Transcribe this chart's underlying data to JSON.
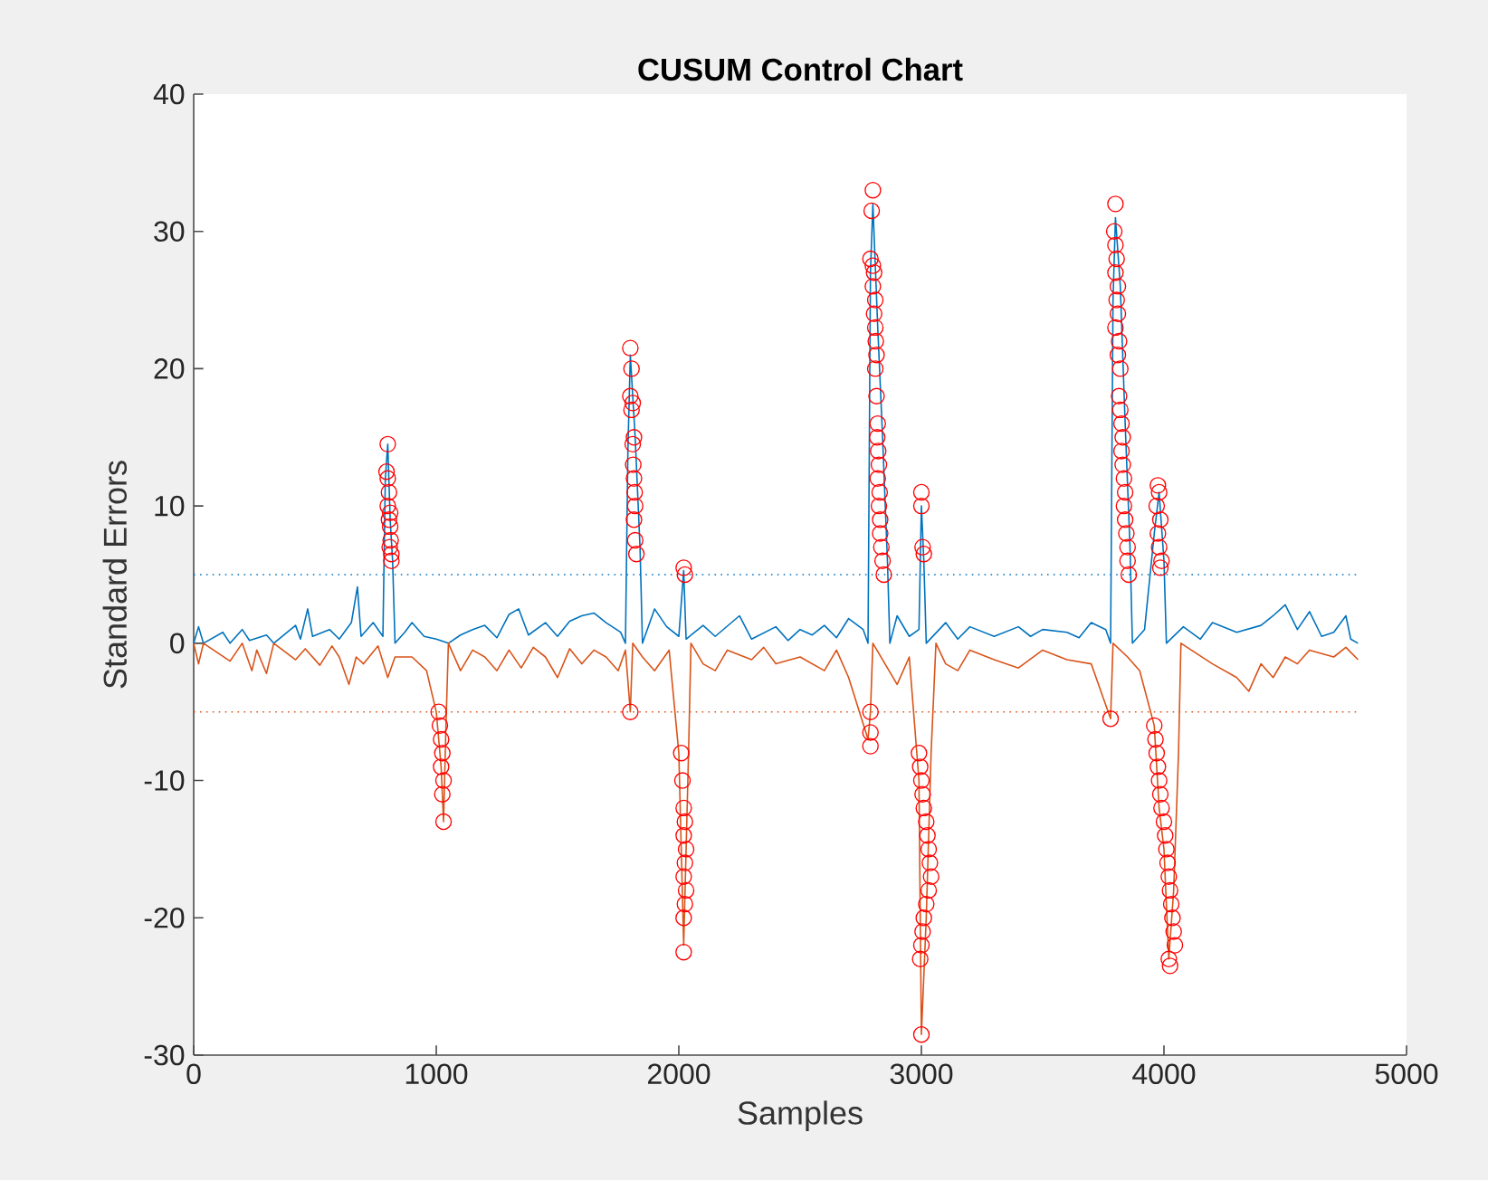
{
  "chart_data": {
    "type": "line",
    "title": "CUSUM Control Chart",
    "xlabel": "Samples",
    "ylabel": "Standard Errors",
    "xlim": [
      0,
      5000
    ],
    "ylim": [
      -30,
      40
    ],
    "xticks": [
      0,
      1000,
      2000,
      3000,
      4000,
      5000
    ],
    "yticks": [
      -30,
      -20,
      -10,
      0,
      10,
      20,
      30,
      40
    ],
    "series": [
      {
        "marker": "none",
        "color": "#0072bd",
        "x": [
          0,
          20,
          40,
          120,
          150,
          200,
          230,
          300,
          330,
          420,
          440,
          470,
          490,
          560,
          600,
          650,
          675,
          690,
          740,
          780,
          790,
          800,
          810,
          820,
          830,
          870,
          900,
          950,
          1000,
          1050,
          1100,
          1150,
          1200,
          1250,
          1300,
          1340,
          1380,
          1450,
          1500,
          1550,
          1600,
          1650,
          1700,
          1760,
          1780,
          1790,
          1800,
          1820,
          1840,
          1850,
          1900,
          1950,
          2000,
          2020,
          2030,
          2100,
          2150,
          2250,
          2300,
          2400,
          2450,
          2500,
          2550,
          2600,
          2650,
          2700,
          2760,
          2780,
          2790,
          2800,
          2820,
          2840,
          2860,
          2870,
          2900,
          2950,
          2990,
          3000,
          3010,
          3020,
          3100,
          3150,
          3200,
          3300,
          3400,
          3450,
          3500,
          3600,
          3650,
          3700,
          3760,
          3780,
          3790,
          3800,
          3820,
          3840,
          3860,
          3870,
          3920,
          3960,
          3980,
          4000,
          4010,
          4080,
          4150,
          4200,
          4300,
          4400,
          4450,
          4500,
          4550,
          4600,
          4650,
          4700,
          4750,
          4770,
          4800
        ],
        "values": [
          0,
          1.2,
          0,
          0.8,
          0,
          1.0,
          0.2,
          0.6,
          0,
          1.3,
          0.3,
          2.5,
          0.5,
          1.0,
          0.3,
          1.5,
          4.1,
          0.5,
          1.5,
          0.5,
          12,
          14.5,
          9,
          6,
          0,
          0.8,
          1.5,
          0.5,
          0.3,
          0,
          0.6,
          1.0,
          1.3,
          0.4,
          2.1,
          2.5,
          0.6,
          1.5,
          0.5,
          1.6,
          2.0,
          2.2,
          1.5,
          0.8,
          0,
          14,
          21,
          15,
          7,
          0,
          2.5,
          1.2,
          0.5,
          5.3,
          0.3,
          1.3,
          0.5,
          2.0,
          0.3,
          1.2,
          0.2,
          1.0,
          0.6,
          1.3,
          0.4,
          1.8,
          1.0,
          0,
          27,
          32,
          23,
          15,
          6,
          0,
          2.0,
          0.5,
          1.0,
          10,
          6,
          0,
          1.5,
          0.3,
          1.2,
          0.5,
          1.2,
          0.5,
          1.0,
          0.8,
          0.4,
          1.5,
          1.0,
          0,
          25,
          31,
          26,
          16,
          7,
          0,
          1.0,
          8,
          11,
          6,
          0,
          1.2,
          0.3,
          1.5,
          0.8,
          1.3,
          2.0,
          2.8,
          1.0,
          2.3,
          0.5,
          0.8,
          2.0,
          0.3,
          0
        ]
      },
      {
        "marker": "none",
        "color": "#d95319",
        "x": [
          0,
          20,
          40,
          150,
          200,
          240,
          260,
          300,
          330,
          420,
          460,
          520,
          570,
          600,
          640,
          670,
          700,
          760,
          800,
          830,
          900,
          960,
          1000,
          1020,
          1030,
          1040,
          1050,
          1100,
          1150,
          1200,
          1250,
          1300,
          1350,
          1400,
          1450,
          1500,
          1550,
          1600,
          1650,
          1700,
          1750,
          1780,
          1800,
          1810,
          1850,
          1900,
          1960,
          2000,
          2020,
          2030,
          2040,
          2050,
          2100,
          2150,
          2200,
          2300,
          2350,
          2400,
          2500,
          2600,
          2650,
          2700,
          2780,
          2790,
          2800,
          2850,
          2900,
          2950,
          2990,
          3000,
          3020,
          3040,
          3060,
          3100,
          3150,
          3200,
          3300,
          3400,
          3500,
          3600,
          3700,
          3780,
          3790,
          3850,
          3900,
          3960,
          3980,
          4000,
          4020,
          4040,
          4060,
          4070,
          4200,
          4300,
          4350,
          4400,
          4450,
          4500,
          4550,
          4600,
          4700,
          4750,
          4800
        ],
        "values": [
          0,
          -1.5,
          0,
          -1.3,
          0,
          -2.0,
          -0.5,
          -2.2,
          0,
          -1.2,
          -0.4,
          -1.6,
          -0.2,
          -1.0,
          -3.0,
          -1.0,
          -1.5,
          -0.2,
          -2.5,
          -1.0,
          -1.0,
          -2.0,
          -5,
          -9,
          -13,
          -6,
          0,
          -2.0,
          -0.5,
          -1.0,
          -2.0,
          -0.5,
          -1.8,
          -0.3,
          -1.0,
          -2.5,
          -0.4,
          -1.5,
          -0.5,
          -1.0,
          -2.0,
          -0.5,
          -5,
          0,
          -1.0,
          -2.0,
          -0.5,
          -8,
          -22,
          -15,
          -8,
          0,
          -1.5,
          -2.0,
          -0.5,
          -1.2,
          -0.3,
          -1.5,
          -1.0,
          -2.0,
          -0.5,
          -2.5,
          -7,
          -5,
          0,
          -1.5,
          -3.0,
          -1.0,
          -10,
          -28.5,
          -20,
          -8,
          0,
          -1.5,
          -2.0,
          -0.5,
          -1.2,
          -1.8,
          -0.5,
          -1.2,
          -1.5,
          -5.5,
          0,
          -1.0,
          -2.0,
          -6,
          -12,
          -15,
          -23,
          -18,
          -8,
          0,
          -1.5,
          -2.5,
          -3.5,
          -1.5,
          -2.5,
          -1.0,
          -1.5,
          -0.5,
          -1.0,
          -0.3,
          -1.2
        ]
      },
      {
        "type": "scatter",
        "marker": "circle",
        "color": "#ff0000",
        "x": [
          800,
          795,
          800,
          805,
          800,
          810,
          805,
          810,
          812,
          808,
          815,
          815,
          1010,
          1015,
          1020,
          1025,
          1020,
          1030,
          1025,
          1030,
          1800,
          1805,
          1800,
          1810,
          1805,
          1815,
          1810,
          1812,
          1815,
          1818,
          1820,
          1815,
          1820,
          1825,
          1800,
          2020,
          2025,
          2010,
          2015,
          2020,
          2025,
          2020,
          2030,
          2025,
          2020,
          2030,
          2025,
          2020,
          2020,
          2800,
          2795,
          2790,
          2800,
          2805,
          2800,
          2810,
          2805,
          2810,
          2812,
          2815,
          2810,
          2815,
          2820,
          2818,
          2822,
          2825,
          2820,
          2828,
          2825,
          2830,
          2830,
          2835,
          2840,
          2845,
          2790,
          2790,
          2790,
          3000,
          3000,
          3005,
          3010,
          2990,
          2995,
          3000,
          3005,
          3010,
          3020,
          3025,
          3030,
          3035,
          3040,
          3030,
          3020,
          3010,
          3005,
          3000,
          2995,
          3000,
          3800,
          3795,
          3800,
          3805,
          3800,
          3810,
          3805,
          3810,
          3800,
          3815,
          3810,
          3820,
          3815,
          3820,
          3825,
          3830,
          3825,
          3830,
          3835,
          3840,
          3835,
          3840,
          3845,
          3850,
          3850,
          3855,
          3780,
          3975,
          3980,
          3970,
          3985,
          3975,
          3980,
          3990,
          3985,
          3960,
          3965,
          3970,
          3975,
          3980,
          3985,
          3990,
          4000,
          4005,
          4010,
          4015,
          4020,
          4025,
          4030,
          4035,
          4040,
          4045,
          4020,
          4025
        ],
        "values": [
          14.5,
          12.5,
          12,
          11,
          10,
          9.5,
          9,
          8.5,
          7.5,
          7,
          6.5,
          6,
          -5,
          -6,
          -7,
          -8,
          -9,
          -10,
          -11,
          -13,
          21.5,
          20,
          18,
          17.5,
          17,
          15,
          14.5,
          13,
          12,
          11,
          10,
          9,
          7.5,
          6.5,
          -5,
          5.5,
          5,
          -8,
          -10,
          -12,
          -13,
          -14,
          -15,
          -16,
          -17,
          -18,
          -19,
          -20,
          -22.5,
          33,
          31.5,
          28,
          27.5,
          27,
          26,
          25,
          24,
          23,
          22,
          21,
          20,
          18,
          16,
          15,
          14,
          13,
          12,
          11,
          10,
          9,
          8,
          7,
          6,
          5,
          -5,
          -6.5,
          -7.5,
          11,
          10,
          7,
          6.5,
          -8,
          -9,
          -10,
          -11,
          -12,
          -13,
          -14,
          -15,
          -16,
          -17,
          -18,
          -19,
          -20,
          -21,
          -22,
          -23,
          -28.5,
          32,
          30,
          29,
          28,
          27,
          26,
          25,
          24,
          23,
          22,
          21,
          20,
          18,
          17,
          16,
          15,
          14,
          13,
          12,
          11,
          10,
          9,
          8,
          7,
          6,
          5,
          -5.5,
          11.5,
          11,
          10,
          9,
          8,
          7,
          6,
          5.5,
          -6,
          -7,
          -8,
          -9,
          -10,
          -11,
          -12,
          -13,
          -14,
          -15,
          -16,
          -17,
          -18,
          -19,
          -20,
          -21,
          -22,
          -23,
          -23.5
        ]
      }
    ],
    "ref_lines": [
      {
        "axis": "y",
        "value": 5,
        "color": "#0072bd",
        "line_style": "dotted"
      },
      {
        "axis": "y",
        "value": -5,
        "color": "#d95319",
        "line_style": "dotted"
      }
    ]
  }
}
